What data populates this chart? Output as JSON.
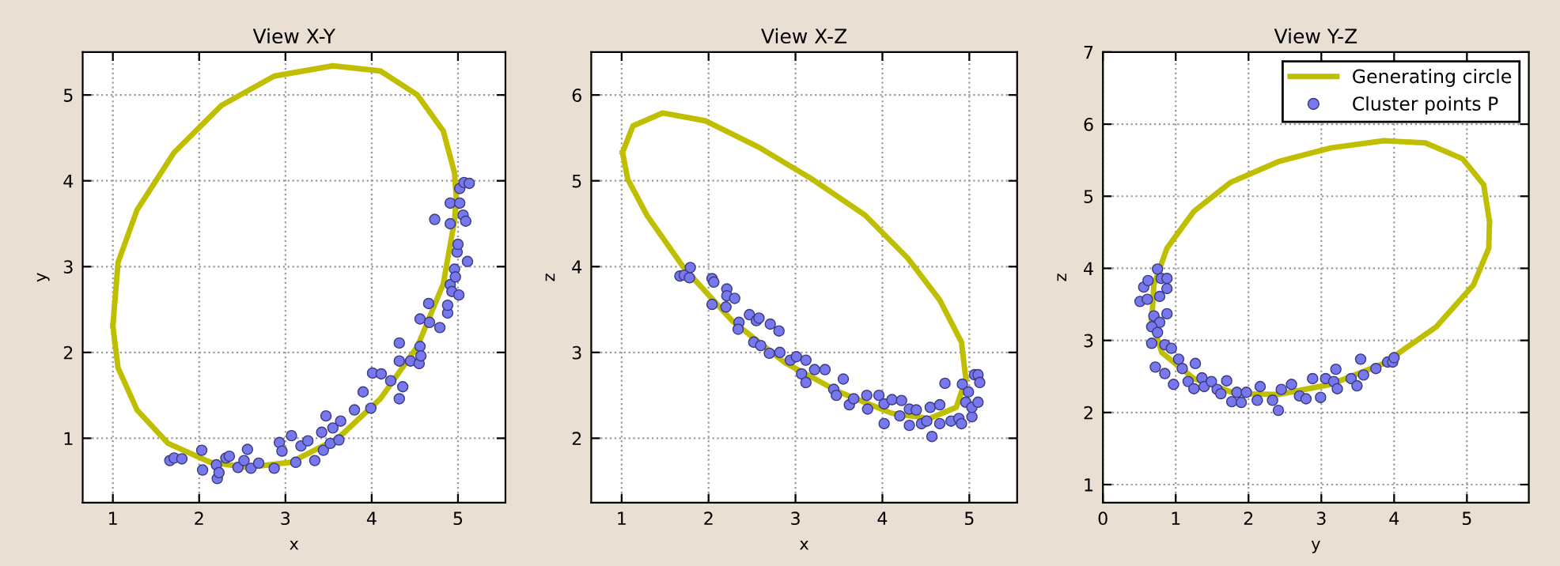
{
  "chart_data": [
    {
      "type": "scatter",
      "title": "View X-Y",
      "xlabel": "x",
      "ylabel": "y",
      "xlim": [
        0.65,
        5.55
      ],
      "ylim": [
        0.25,
        5.5
      ],
      "xticks": [
        1,
        2,
        3,
        4,
        5
      ],
      "yticks": [
        1,
        2,
        3,
        4,
        5
      ],
      "grid": true,
      "series": [
        {
          "type": "line",
          "color": "#bfbf00",
          "marker": "none",
          "x": [
            1.0,
            1.06,
            1.28,
            1.71,
            2.26,
            2.87,
            3.55,
            4.1,
            4.53,
            4.83,
            4.96,
            4.98,
            null,
            1.0,
            1.06,
            1.28,
            1.64,
            2.13,
            2.56,
            3.06,
            3.61,
            4.1,
            4.53,
            4.83,
            4.96,
            4.98
          ],
          "values": [
            2.31,
            3.05,
            3.66,
            4.33,
            4.88,
            5.22,
            5.34,
            5.28,
            5.0,
            4.58,
            4.09,
            3.8,
            null,
            2.31,
            1.82,
            1.33,
            0.94,
            0.72,
            0.66,
            0.72,
            1.0,
            1.46,
            2.07,
            2.8,
            3.54,
            3.8
          ]
        },
        {
          "color": "#7777ee",
          "marker": "circle",
          "x": [
            1.66,
            1.71,
            1.8,
            2.03,
            2.04,
            2.2,
            2.21,
            2.23,
            2.31,
            2.35,
            2.45,
            2.52,
            2.56,
            2.6,
            2.69,
            2.87,
            2.93,
            2.96,
            3.07,
            3.12,
            3.18,
            3.26,
            3.34,
            3.42,
            3.44,
            3.47,
            3.52,
            3.55,
            3.62,
            3.64,
            3.8,
            3.9,
            3.99,
            4.01,
            4.11,
            4.22,
            4.32,
            4.32,
            4.32,
            4.36,
            4.45,
            4.55,
            4.56,
            4.57,
            4.56,
            4.66,
            4.67,
            4.79,
            4.88,
            4.88,
            4.91,
            4.93,
            4.96,
            4.97,
            5.01,
            4.99,
            5.0,
            5.11,
            4.91,
            4.73,
            4.91,
            5.02,
            5.06,
            5.09,
            5.02,
            5.07,
            5.13
          ],
          "values": [
            0.74,
            0.77,
            0.76,
            0.86,
            0.63,
            0.69,
            0.53,
            0.6,
            0.77,
            0.79,
            0.66,
            0.74,
            0.87,
            0.65,
            0.71,
            0.65,
            0.95,
            0.85,
            1.03,
            0.72,
            0.91,
            0.97,
            0.74,
            1.07,
            0.86,
            1.26,
            0.94,
            1.12,
            0.98,
            1.2,
            1.33,
            1.54,
            1.35,
            1.76,
            1.75,
            1.67,
            1.9,
            2.11,
            1.46,
            1.6,
            1.9,
            1.87,
            2.07,
            1.96,
            2.39,
            2.57,
            2.35,
            2.29,
            2.46,
            2.55,
            2.79,
            2.71,
            2.97,
            2.88,
            2.67,
            3.17,
            3.26,
            3.06,
            3.5,
            3.55,
            3.74,
            3.74,
            3.6,
            3.53,
            3.91,
            3.98,
            3.97
          ]
        }
      ]
    },
    {
      "type": "scatter",
      "title": "View X-Z",
      "xlabel": "x",
      "ylabel": "z",
      "xlim": [
        0.65,
        5.55
      ],
      "ylim": [
        1.25,
        6.5
      ],
      "xticks": [
        1,
        2,
        3,
        4,
        5
      ],
      "yticks": [
        2,
        3,
        4,
        5,
        6
      ],
      "grid": true,
      "series": [
        {
          "type": "line",
          "color": "#bfbf00",
          "marker": "none",
          "x": [
            1.01,
            1.13,
            1.47,
            1.96,
            2.58,
            3.19,
            3.8,
            4.29,
            4.66,
            4.91,
            4.96,
            null,
            1.01,
            1.07,
            1.29,
            1.72,
            2.27,
            2.88,
            3.5,
            4.11,
            4.54,
            4.85,
            4.96
          ],
          "values": [
            5.33,
            5.64,
            5.79,
            5.7,
            5.39,
            5.02,
            4.6,
            4.1,
            3.61,
            3.12,
            2.69,
            null,
            5.33,
            5.02,
            4.6,
            3.98,
            3.37,
            2.88,
            2.54,
            2.29,
            2.23,
            2.36,
            2.69
          ]
        },
        {
          "color": "#7777ee",
          "marker": "circle",
          "x": [
            1.67,
            1.72,
            1.78,
            1.79,
            2.04,
            2.06,
            2.04,
            2.21,
            2.21,
            2.3,
            2.2,
            2.35,
            2.34,
            2.47,
            2.55,
            2.58,
            2.52,
            2.6,
            2.71,
            2.81,
            2.7,
            2.82,
            2.94,
            3.01,
            3.07,
            3.12,
            3.12,
            3.22,
            3.34,
            3.44,
            3.47,
            3.55,
            3.62,
            3.67,
            3.82,
            3.83,
            3.96,
            4.02,
            4.02,
            4.11,
            4.22,
            4.2,
            4.31,
            4.31,
            4.39,
            4.45,
            4.51,
            4.55,
            4.57,
            4.66,
            4.66,
            4.72,
            4.79,
            4.88,
            4.91,
            4.92,
            4.96,
            4.99,
            5.03,
            5.03,
            5.06,
            5.1,
            5.12,
            5.1
          ],
          "values": [
            3.89,
            3.9,
            3.87,
            3.99,
            3.86,
            3.82,
            3.56,
            3.74,
            3.66,
            3.63,
            3.53,
            3.35,
            3.27,
            3.44,
            3.37,
            3.4,
            3.12,
            3.08,
            3.33,
            3.25,
            2.99,
            3.0,
            2.91,
            2.95,
            2.75,
            2.91,
            2.65,
            2.8,
            2.8,
            2.57,
            2.5,
            2.69,
            2.39,
            2.46,
            2.5,
            2.34,
            2.5,
            2.4,
            2.17,
            2.45,
            2.44,
            2.26,
            2.34,
            2.15,
            2.33,
            2.17,
            2.2,
            2.36,
            2.02,
            2.39,
            2.17,
            2.64,
            2.2,
            2.23,
            2.17,
            2.63,
            2.42,
            2.54,
            2.25,
            2.36,
            2.74,
            2.74,
            2.65,
            2.42
          ]
        }
      ]
    },
    {
      "type": "scatter",
      "title": "View Y-Z",
      "xlabel": "y",
      "ylabel": "z",
      "xlim": [
        0,
        5.85
      ],
      "ylim": [
        0.75,
        7
      ],
      "xticks": [
        0,
        1,
        2,
        3,
        4,
        5
      ],
      "yticks": [
        1,
        2,
        3,
        4,
        5,
        6,
        7
      ],
      "grid": true,
      "legend": "top right",
      "series": [
        {
          "type": "line",
          "name": "Generating circle",
          "color": "#bfbf00",
          "marker": "none",
          "x": [
            0.67,
            0.7,
            0.88,
            1.25,
            1.75,
            2.41,
            3.13,
            3.86,
            4.43,
            4.94,
            5.23,
            5.31,
            null,
            0.67,
            0.81,
            1.25,
            1.83,
            2.41,
            3.13,
            3.86,
            4.58,
            5.09,
            5.3,
            5.31
          ],
          "values": [
            3.27,
            3.77,
            4.28,
            4.79,
            5.19,
            5.48,
            5.67,
            5.77,
            5.74,
            5.52,
            5.16,
            4.65,
            null,
            3.27,
            2.83,
            2.47,
            2.26,
            2.25,
            2.39,
            2.68,
            3.19,
            3.77,
            4.28,
            4.65
          ]
        },
        {
          "name": "Cluster points P",
          "color": "#7777ee",
          "marker": "circle",
          "x": [
            0.51,
            0.56,
            0.62,
            0.61,
            0.75,
            0.8,
            0.88,
            0.88,
            0.78,
            0.7,
            0.78,
            0.88,
            0.67,
            0.67,
            0.75,
            0.72,
            0.85,
            0.94,
            0.85,
            0.97,
            1.04,
            1.09,
            1.17,
            1.25,
            1.27,
            1.36,
            1.39,
            1.49,
            1.57,
            1.62,
            1.7,
            1.77,
            1.84,
            1.9,
            1.97,
            2.12,
            2.16,
            2.33,
            2.41,
            2.45,
            2.59,
            2.7,
            2.79,
            2.88,
            2.99,
            3.06,
            3.17,
            3.2,
            3.22,
            3.41,
            3.49,
            3.54,
            3.58,
            3.75,
            3.91,
            3.98,
            4.0
          ],
          "values": [
            3.54,
            3.74,
            3.83,
            3.57,
            3.99,
            3.86,
            3.86,
            3.72,
            3.61,
            3.34,
            3.25,
            3.37,
            3.19,
            2.96,
            3.11,
            2.63,
            2.94,
            2.89,
            2.54,
            2.39,
            2.74,
            2.61,
            2.43,
            2.33,
            2.68,
            2.48,
            2.36,
            2.43,
            2.32,
            2.26,
            2.44,
            2.15,
            2.28,
            2.14,
            2.28,
            2.17,
            2.36,
            2.17,
            2.03,
            2.32,
            2.39,
            2.23,
            2.19,
            2.47,
            2.21,
            2.47,
            2.43,
            2.6,
            2.33,
            2.47,
            2.37,
            2.74,
            2.52,
            2.61,
            2.7,
            2.7,
            2.76
          ]
        }
      ]
    }
  ]
}
